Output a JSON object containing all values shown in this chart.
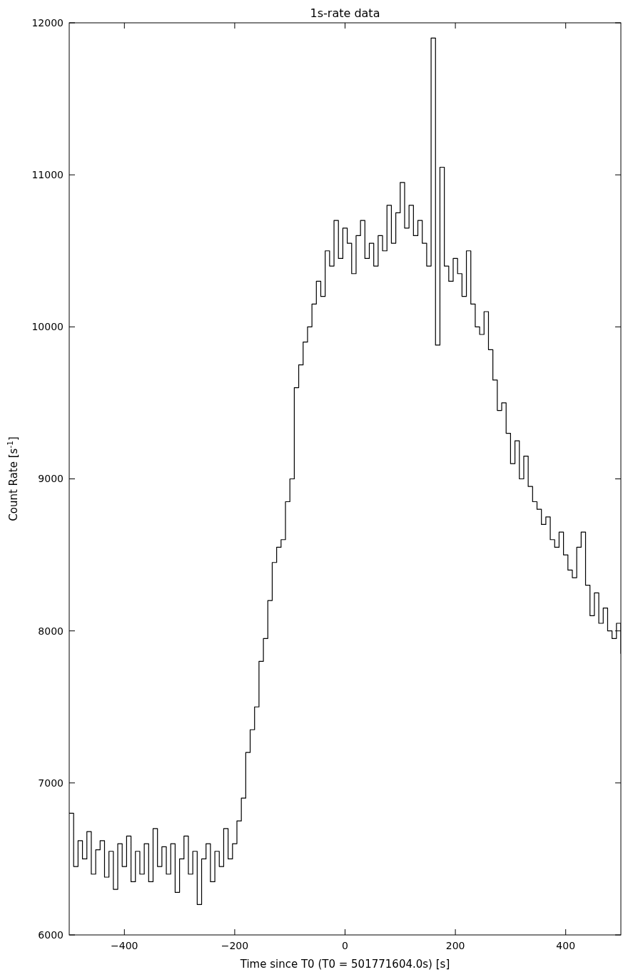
{
  "chart_data": {
    "type": "step",
    "title": "1s-rate data",
    "xlabel": "Time since T0 (T0 = 501771604.0s) [s]",
    "ylabel": "Count Rate [s$^{-1}$]",
    "xlim": [
      -500,
      500
    ],
    "ylim": [
      6000,
      12000
    ],
    "xticks": [
      {
        "value": -400,
        "label": "−400"
      },
      {
        "value": -200,
        "label": "−200"
      },
      0,
      200,
      400
    ],
    "yticks": [
      6000,
      7000,
      8000,
      9000,
      10000,
      11000,
      12000
    ],
    "grid": false,
    "x": [
      -500,
      -492,
      -484,
      -476,
      -468,
      -460,
      -452,
      -444,
      -436,
      -428,
      -420,
      -412,
      -404,
      -396,
      -388,
      -380,
      -372,
      -364,
      -356,
      -348,
      -340,
      -332,
      -324,
      -316,
      -308,
      -300,
      -292,
      -284,
      -276,
      -268,
      -260,
      -252,
      -244,
      -236,
      -228,
      -220,
      -212,
      -204,
      -196,
      -188,
      -180,
      -172,
      -164,
      -156,
      -148,
      -140,
      -132,
      -124,
      -116,
      -108,
      -100,
      -92,
      -84,
      -76,
      -68,
      -60,
      -52,
      -44,
      -36,
      -28,
      -20,
      -12,
      -4,
      4,
      12,
      20,
      28,
      36,
      44,
      52,
      60,
      68,
      76,
      84,
      92,
      100,
      108,
      116,
      124,
      132,
      140,
      148,
      156,
      164,
      172,
      180,
      188,
      196,
      204,
      212,
      220,
      228,
      236,
      244,
      252,
      260,
      268,
      276,
      284,
      292,
      300,
      308,
      316,
      324,
      332,
      340,
      348,
      356,
      364,
      372,
      380,
      388,
      396,
      404,
      412,
      420,
      428,
      436,
      444,
      452,
      460,
      468,
      476,
      484,
      492,
      500
    ],
    "series": [
      {
        "color": "#000000",
        "values": [
          6800,
          6450,
          6620,
          6500,
          6680,
          6400,
          6560,
          6620,
          6380,
          6550,
          6300,
          6600,
          6450,
          6650,
          6350,
          6550,
          6400,
          6600,
          6350,
          6700,
          6450,
          6580,
          6400,
          6600,
          6280,
          6500,
          6650,
          6400,
          6550,
          6200,
          6500,
          6600,
          6350,
          6550,
          6450,
          6700,
          6500,
          6600,
          6750,
          6900,
          7200,
          7350,
          7500,
          7800,
          7950,
          8200,
          8450,
          8550,
          8600,
          8850,
          9000,
          9600,
          9750,
          9900,
          10000,
          10150,
          10300,
          10200,
          10500,
          10400,
          10700,
          10450,
          10650,
          10550,
          10350,
          10600,
          10700,
          10450,
          10550,
          10400,
          10600,
          10500,
          10800,
          10550,
          10750,
          10950,
          10650,
          10800,
          10600,
          10700,
          10550,
          10400,
          11900,
          9880,
          11050,
          10400,
          10300,
          10450,
          10350,
          10200,
          10500,
          10150,
          10000,
          9950,
          10100,
          9850,
          9650,
          9450,
          9500,
          9300,
          9100,
          9250,
          9000,
          9150,
          8950,
          8850,
          8800,
          8700,
          8750,
          8600,
          8550,
          8650,
          8500,
          8400,
          8350,
          8550,
          8650,
          8300,
          8100,
          8250,
          8050,
          8150,
          8000,
          7950,
          8050,
          7850
        ]
      }
    ]
  }
}
